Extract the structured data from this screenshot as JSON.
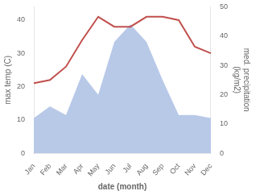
{
  "chart_data": {
    "type": "line",
    "categories": [
      "Jan",
      "Feb",
      "Mar",
      "Apr",
      "May",
      "Jun",
      "Jul",
      "Aug",
      "Sep",
      "Oct",
      "Nov",
      "Dec"
    ],
    "series": [
      {
        "type": "area",
        "axis": "y2",
        "color": "#b8c9e8",
        "values": [
          12,
          16,
          13,
          27,
          20,
          38,
          44,
          38,
          25,
          13,
          13,
          12
        ]
      },
      {
        "type": "line",
        "color": "#c0504d",
        "values": [
          21,
          22,
          26,
          34,
          41,
          38,
          38,
          41,
          41,
          40,
          32,
          30
        ]
      }
    ],
    "xlabel": "date (month)",
    "ylabel": "max temp (C)",
    "y2label": "med. precipitation\n(kg/m2)",
    "ylim": [
      0,
      44
    ],
    "yticks": [
      0,
      10,
      20,
      30,
      40
    ],
    "y2lim": [
      0,
      50
    ],
    "y2ticks": [
      0,
      10,
      20,
      30,
      40,
      50
    ],
    "grid": false
  }
}
